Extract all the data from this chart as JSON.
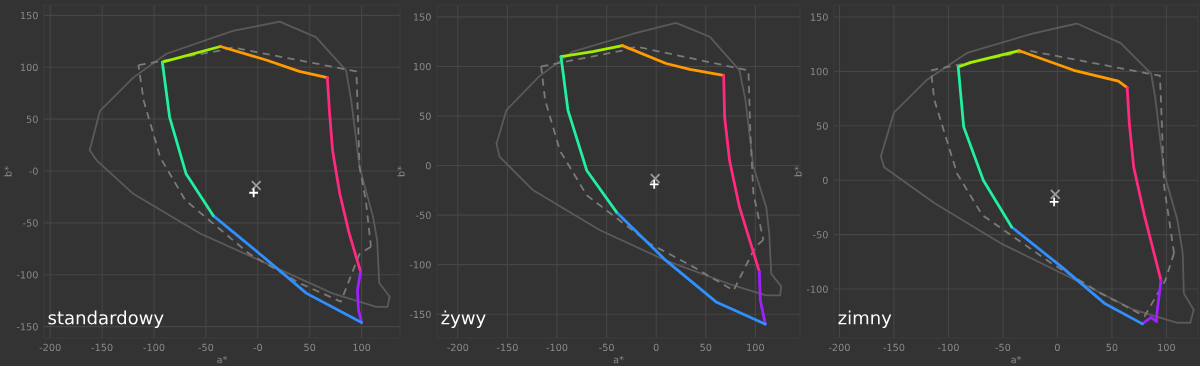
{
  "chart_data": [
    {
      "type": "line",
      "xlabel": "a*",
      "ylabel": "b*",
      "annotations": [
        "standardowy"
      ],
      "grid": true,
      "xlim": [
        -206,
        137
      ],
      "ylim": [
        -161,
        160
      ],
      "xticks": [
        -200,
        -150,
        -100,
        -50,
        {
          "value": 0,
          "label": "-0"
        },
        50,
        100
      ],
      "yticks": [
        -150,
        -100,
        -50,
        {
          "value": 0,
          "label": "-0"
        },
        50,
        100,
        150
      ],
      "series": [
        {
          "color": "#5a5a5a",
          "line_style": "solid",
          "x": [
            -162,
            -152,
            -120,
            -88,
            -24,
            21,
            56,
            85,
            90,
            98,
            111,
            115,
            117,
            127
          ],
          "values": [
            20,
            58,
            90,
            113,
            135,
            144,
            129,
            97,
            68,
            4,
            -44,
            -67,
            -108,
            -121
          ]
        },
        {
          "color": "#5a5a5a",
          "line_style": "solid",
          "x": [
            127,
            125,
            114,
            72,
            8,
            -56,
            -120,
            -155,
            -162
          ],
          "values": [
            -121,
            -131,
            -131,
            -118,
            -89,
            -60,
            -22,
            10,
            20
          ]
        },
        {
          "color": "#7a7a7a",
          "line_style": "dashed",
          "x": [
            -115,
            -37,
            -24,
            95,
            98,
            104,
            109
          ],
          "values": [
            102,
            116,
            119,
            96,
            4,
            -28,
            -73
          ]
        },
        {
          "color": "#7a7a7a",
          "line_style": "dashed",
          "x": [
            109,
            98,
            80,
            40,
            -8,
            -70,
            -94,
            -110,
            -115
          ],
          "values": [
            -73,
            -80,
            -126,
            -108,
            -80,
            -28,
            13,
            68,
            102
          ]
        },
        {
          "color": "#a0f000",
          "line_style": "solid",
          "x": [
            -92,
            -36
          ],
          "values": [
            105,
            120
          ]
        },
        {
          "color": "#ff9a00",
          "line_style": "solid",
          "x": [
            -36,
            8,
            40,
            67
          ],
          "values": [
            120,
            107,
            96,
            90
          ]
        },
        {
          "color": "#ff2a80",
          "line_style": "solid",
          "x": [
            67,
            69,
            72,
            79,
            88,
            99
          ],
          "values": [
            90,
            58,
            20,
            -22,
            -60,
            -97
          ]
        },
        {
          "color": "#a020ff",
          "line_style": "solid",
          "x": [
            99,
            96,
            97,
            100
          ],
          "values": [
            -97,
            -115,
            -134,
            -146
          ]
        },
        {
          "color": "#3090ff",
          "line_style": "solid",
          "x": [
            100,
            47,
            2,
            -43
          ],
          "values": [
            -146,
            -118,
            -80,
            -43
          ]
        },
        {
          "color": "#20f0a0",
          "line_style": "solid",
          "x": [
            -43,
            -69,
            -85,
            -92
          ],
          "values": [
            -43,
            -3,
            52,
            105
          ]
        },
        {
          "type": "scatter",
          "marker": "cross",
          "color": "#9a9a9a",
          "x": [
            -1.5
          ],
          "values": [
            -14
          ]
        },
        {
          "type": "scatter",
          "marker": "plus",
          "color": "#ffffff",
          "x": [
            -4
          ],
          "values": [
            -21
          ]
        }
      ]
    },
    {
      "type": "line",
      "xlabel": "a*",
      "ylabel": "b*",
      "annotations": [
        "żywy"
      ],
      "grid": true,
      "xlim": [
        -221,
        145
      ],
      "ylim": [
        -174,
        162
      ],
      "xticks": [
        -200,
        -150,
        -100,
        -50,
        0,
        50,
        100
      ],
      "yticks": [
        -150,
        -100,
        -50,
        0,
        50,
        100,
        150
      ],
      "series": [
        {
          "color": "#5a5a5a",
          "line_style": "solid",
          "x": [
            -161,
            -151,
            -118,
            -84,
            -23,
            20,
            54,
            84,
            90,
            98,
            111,
            114,
            116,
            126
          ],
          "values": [
            22,
            56,
            90,
            115,
            133,
            144,
            130,
            96,
            66,
            -1,
            -42,
            -69,
            -109,
            -122
          ]
        },
        {
          "color": "#5a5a5a",
          "line_style": "solid",
          "x": [
            126,
            125,
            111,
            78,
            10,
            -57,
            -124,
            -158,
            -161
          ],
          "values": [
            -122,
            -131,
            -131,
            -121,
            -96,
            -65,
            -25,
            9,
            22
          ]
        },
        {
          "color": "#7a7a7a",
          "line_style": "dashed",
          "x": [
            -116,
            -34,
            -20,
            93,
            95,
            98,
            108
          ],
          "values": [
            100,
            116,
            120,
            96,
            32,
            -28,
            -75
          ]
        },
        {
          "color": "#7a7a7a",
          "line_style": "dashed",
          "x": [
            108,
            100,
            78,
            37,
            -6,
            -70,
            -97,
            -112,
            -116
          ],
          "values": [
            -75,
            -82,
            -126,
            -102,
            -79,
            -30,
            15,
            66,
            100
          ]
        },
        {
          "color": "#a0f000",
          "line_style": "solid",
          "x": [
            -96,
            -64,
            -34
          ],
          "values": [
            110,
            115,
            121
          ]
        },
        {
          "color": "#ff9a00",
          "line_style": "solid",
          "x": [
            -34,
            10,
            34,
            68
          ],
          "values": [
            121,
            103,
            97,
            91
          ]
        },
        {
          "color": "#ff2a80",
          "line_style": "solid",
          "x": [
            68,
            69,
            74,
            84,
            104
          ],
          "values": [
            91,
            49,
            5,
            -42,
            -107
          ]
        },
        {
          "color": "#a020ff",
          "line_style": "solid",
          "x": [
            104,
            105,
            110
          ],
          "values": [
            -107,
            -136,
            -160
          ]
        },
        {
          "color": "#3090ff",
          "line_style": "solid",
          "x": [
            110,
            61,
            10,
            -40
          ],
          "values": [
            -160,
            -138,
            -96,
            -47
          ]
        },
        {
          "color": "#20f0a0",
          "line_style": "solid",
          "x": [
            -40,
            -70,
            -89,
            -96
          ],
          "values": [
            -47,
            -5,
            56,
            110
          ]
        },
        {
          "type": "scatter",
          "marker": "cross",
          "color": "#9a9a9a",
          "x": [
            -1
          ],
          "values": [
            -13
          ]
        },
        {
          "type": "scatter",
          "marker": "plus",
          "color": "#ffffff",
          "x": [
            -2
          ],
          "values": [
            -19
          ]
        }
      ]
    },
    {
      "type": "line",
      "xlabel": "a*",
      "ylabel": "b*",
      "annotations": [
        "zimny"
      ],
      "grid": true,
      "xlim": [
        -205,
        129
      ],
      "ylim": [
        -145,
        161
      ],
      "xticks": [
        -200,
        -150,
        -100,
        -50,
        0,
        50,
        100
      ],
      "yticks": [
        -100,
        -50,
        0,
        50,
        100,
        150
      ],
      "series": [
        {
          "color": "#5a5a5a",
          "line_style": "solid",
          "x": [
            -162,
            -150,
            -120,
            -83,
            -22,
            18,
            58,
            86,
            90,
            98,
            110,
            115,
            116,
            125
          ],
          "values": [
            22,
            62,
            92,
            117,
            135,
            144,
            126,
            98,
            74,
            6,
            -36,
            -67,
            -104,
            -119
          ]
        },
        {
          "color": "#5a5a5a",
          "line_style": "solid",
          "x": [
            125,
            122,
            110,
            70,
            9,
            -52,
            -113,
            -159,
            -162
          ],
          "values": [
            -119,
            -131,
            -131,
            -119,
            -88,
            -58,
            -21,
            12,
            22
          ]
        },
        {
          "color": "#7a7a7a",
          "line_style": "dashed",
          "x": [
            -116,
            -26,
            94,
            95,
            98,
            107
          ],
          "values": [
            101,
            119,
            96,
            74,
            -6,
            -67
          ]
        },
        {
          "color": "#7a7a7a",
          "line_style": "dashed",
          "x": [
            107,
            99,
            80,
            40,
            -6,
            -69,
            -92,
            -113,
            -116
          ],
          "values": [
            -67,
            -92,
            -125,
            -104,
            -76,
            -32,
            6,
            74,
            101
          ]
        },
        {
          "color": "#a0f000",
          "line_style": "solid",
          "x": [
            -91,
            -80,
            -35
          ],
          "values": [
            104,
            108,
            119
          ]
        },
        {
          "color": "#ff9a00",
          "line_style": "solid",
          "x": [
            -35,
            15,
            56,
            64
          ],
          "values": [
            119,
            101,
            91,
            85
          ]
        },
        {
          "color": "#ff2a80",
          "line_style": "solid",
          "x": [
            64,
            66,
            70,
            80,
            95
          ],
          "values": [
            85,
            52,
            12,
            -33,
            -92
          ]
        },
        {
          "color": "#a020ff",
          "line_style": "solid",
          "x": [
            95,
            91,
            91,
            86,
            78
          ],
          "values": [
            -92,
            -125,
            -130,
            -126,
            -132
          ]
        },
        {
          "color": "#3090ff",
          "line_style": "solid",
          "x": [
            78,
            43,
            3,
            -42
          ],
          "values": [
            -132,
            -113,
            -79,
            -43
          ]
        },
        {
          "color": "#20f0a0",
          "line_style": "solid",
          "x": [
            -42,
            -68,
            -86,
            -91
          ],
          "values": [
            -43,
            0,
            49,
            104
          ]
        },
        {
          "type": "scatter",
          "marker": "cross",
          "color": "#9a9a9a",
          "x": [
            -2
          ],
          "values": [
            -13
          ]
        },
        {
          "type": "scatter",
          "marker": "plus",
          "color": "#ffffff",
          "x": [
            -3
          ],
          "values": [
            -20
          ]
        }
      ]
    }
  ]
}
